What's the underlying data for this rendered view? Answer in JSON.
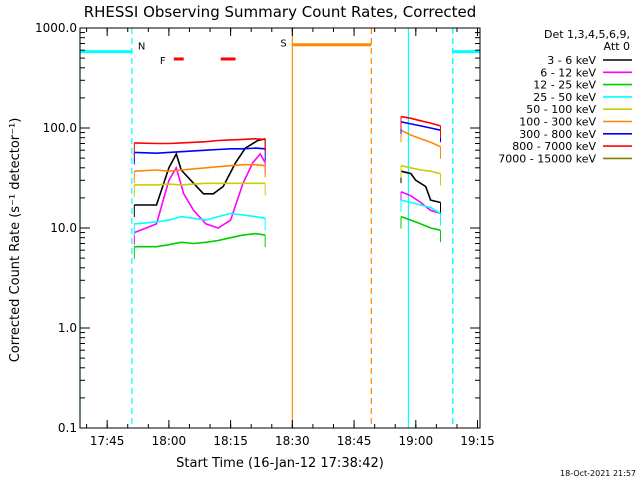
{
  "chart_data": {
    "type": "line",
    "title": "RHESSI Observing Summary Count Rates, Corrected",
    "xlabel": "Start Time (16-Jan-12 17:38:42)",
    "ylabel": "Corrected Count Rate (s⁻¹ detector⁻¹)",
    "yscale": "log",
    "ylim": [
      0.1,
      1000
    ],
    "xlim_minutes": [
      17.64,
      19.26
    ],
    "xticks": [
      "17:45",
      "18:00",
      "18:15",
      "18:30",
      "18:45",
      "19:00",
      "19:15"
    ],
    "xtick_minutes": [
      17.75,
      18.0,
      18.25,
      18.5,
      18.75,
      19.0,
      19.25
    ],
    "yticks": [
      "0.1",
      "1.0",
      "10.0",
      "100.0",
      "1000.0"
    ],
    "ytick_values": [
      0.1,
      1,
      10,
      100,
      1000
    ],
    "legend_title": [
      "Det 1,3,4,5,6,9,",
      "Att 0"
    ],
    "legend_position": "right",
    "timestamp": "18-Oct-2021 21:57",
    "series": [
      {
        "name": "3 - 6 keV",
        "color": "#000000",
        "segments": [
          [
            [
              17.86,
              17
            ],
            [
              17.95,
              17
            ],
            [
              18.0,
              40
            ],
            [
              18.03,
              55
            ],
            [
              18.05,
              38
            ],
            [
              18.1,
              28
            ],
            [
              18.14,
              22
            ],
            [
              18.18,
              22
            ],
            [
              18.22,
              26
            ],
            [
              18.27,
              45
            ],
            [
              18.31,
              63
            ],
            [
              18.36,
              75
            ],
            [
              18.39,
              78
            ]
          ],
          [
            [
              18.94,
              37
            ],
            [
              18.98,
              35
            ],
            [
              19.0,
              30
            ],
            [
              19.04,
              26
            ],
            [
              19.06,
              19
            ],
            [
              19.1,
              18
            ]
          ]
        ]
      },
      {
        "name": "6 - 12 keV",
        "color": "#ff00ff",
        "segments": [
          [
            [
              17.86,
              9
            ],
            [
              17.95,
              11
            ],
            [
              18.0,
              30
            ],
            [
              18.03,
              40
            ],
            [
              18.06,
              22
            ],
            [
              18.1,
              15
            ],
            [
              18.15,
              11
            ],
            [
              18.2,
              10
            ],
            [
              18.25,
              12
            ],
            [
              18.3,
              28
            ],
            [
              18.34,
              45
            ],
            [
              18.37,
              55
            ],
            [
              18.39,
              45
            ]
          ],
          [
            [
              18.94,
              23
            ],
            [
              18.98,
              21
            ],
            [
              19.02,
              18
            ],
            [
              19.06,
              15
            ],
            [
              19.1,
              14
            ]
          ]
        ]
      },
      {
        "name": "12 - 25 keV",
        "color": "#00cc00",
        "segments": [
          [
            [
              17.86,
              6.5
            ],
            [
              17.95,
              6.5
            ],
            [
              18.0,
              6.8
            ],
            [
              18.05,
              7.2
            ],
            [
              18.1,
              7
            ],
            [
              18.15,
              7.2
            ],
            [
              18.2,
              7.5
            ],
            [
              18.25,
              8
            ],
            [
              18.3,
              8.5
            ],
            [
              18.35,
              8.8
            ],
            [
              18.39,
              8.5
            ]
          ],
          [
            [
              18.94,
              13
            ],
            [
              18.98,
              12
            ],
            [
              19.02,
              11
            ],
            [
              19.06,
              10
            ],
            [
              19.1,
              9.5
            ]
          ]
        ]
      },
      {
        "name": "25 - 50 keV",
        "color": "#00ffff",
        "segments": [
          [
            [
              17.86,
              11
            ],
            [
              17.95,
              11.5
            ],
            [
              18.0,
              12
            ],
            [
              18.05,
              13
            ],
            [
              18.1,
              12.5
            ],
            [
              18.15,
              12
            ],
            [
              18.2,
              13
            ],
            [
              18.25,
              14
            ],
            [
              18.3,
              13.5
            ],
            [
              18.35,
              13
            ],
            [
              18.39,
              12.5
            ]
          ],
          [
            [
              18.94,
              19
            ],
            [
              18.98,
              18
            ],
            [
              19.02,
              17
            ],
            [
              19.06,
              16
            ],
            [
              19.1,
              14
            ]
          ]
        ]
      },
      {
        "name": "50 - 100 keV",
        "color": "#cccc00",
        "segments": [
          [
            [
              17.86,
              27
            ],
            [
              17.95,
              27
            ],
            [
              18.0,
              27.5
            ],
            [
              18.05,
              27
            ],
            [
              18.1,
              27.5
            ],
            [
              18.15,
              28
            ],
            [
              18.2,
              28
            ],
            [
              18.25,
              28
            ],
            [
              18.3,
              28
            ],
            [
              18.35,
              28
            ],
            [
              18.39,
              28
            ]
          ],
          [
            [
              18.94,
              42
            ],
            [
              18.98,
              40
            ],
            [
              19.02,
              38
            ],
            [
              19.06,
              37
            ],
            [
              19.1,
              35
            ]
          ]
        ]
      },
      {
        "name": "100 - 300 keV",
        "color": "#ff8800",
        "segments": [
          [
            [
              17.86,
              37
            ],
            [
              17.95,
              38
            ],
            [
              18.0,
              37
            ],
            [
              18.05,
              38
            ],
            [
              18.1,
              39
            ],
            [
              18.15,
              40
            ],
            [
              18.2,
              41
            ],
            [
              18.25,
              42
            ],
            [
              18.3,
              43
            ],
            [
              18.35,
              43
            ],
            [
              18.39,
              42
            ]
          ],
          [
            [
              18.94,
              95
            ],
            [
              18.98,
              85
            ],
            [
              19.02,
              78
            ],
            [
              19.06,
              72
            ],
            [
              19.1,
              65
            ]
          ]
        ]
      },
      {
        "name": "300 - 800 keV",
        "color": "#0000ff",
        "segments": [
          [
            [
              17.86,
              57
            ],
            [
              17.95,
              56
            ],
            [
              18.0,
              57
            ],
            [
              18.05,
              58
            ],
            [
              18.1,
              59
            ],
            [
              18.15,
              60
            ],
            [
              18.2,
              61
            ],
            [
              18.25,
              62
            ],
            [
              18.3,
              62
            ],
            [
              18.35,
              63
            ],
            [
              18.39,
              62
            ]
          ],
          [
            [
              18.94,
              115
            ],
            [
              18.98,
              110
            ],
            [
              19.02,
              105
            ],
            [
              19.06,
              100
            ],
            [
              19.1,
              95
            ]
          ]
        ]
      },
      {
        "name": "800 - 7000 keV",
        "color": "#ff0000",
        "segments": [
          [
            [
              17.86,
              71
            ],
            [
              17.95,
              70
            ],
            [
              18.0,
              70
            ],
            [
              18.05,
              71
            ],
            [
              18.1,
              72
            ],
            [
              18.15,
              73
            ],
            [
              18.2,
              75
            ],
            [
              18.25,
              76
            ],
            [
              18.3,
              77
            ],
            [
              18.35,
              78
            ],
            [
              18.39,
              77
            ]
          ],
          [
            [
              18.94,
              130
            ],
            [
              18.98,
              125
            ],
            [
              19.02,
              118
            ],
            [
              19.06,
              112
            ],
            [
              19.1,
              105
            ]
          ]
        ]
      },
      {
        "name": "7000 - 15000 keV",
        "color": "#808000",
        "segments": []
      }
    ],
    "flags": {
      "night_intervals": [
        [
          17.64,
          17.85
        ],
        [
          19.15,
          19.26
        ]
      ],
      "night_level": 580,
      "night_color": "#00ffff",
      "night_label": "N",
      "saa_interval": [
        18.5,
        18.82
      ],
      "saa_level": 680,
      "saa_color": "#ff8800",
      "saa_label": "S",
      "flare_intervals": [
        [
          18.02,
          18.06
        ],
        [
          18.21,
          18.27
        ]
      ],
      "flare_level": 490,
      "flare_color": "#ff0000",
      "flare_label": "F"
    },
    "vlines": [
      {
        "x": 17.64,
        "color": "#00ffff",
        "style": "solid"
      },
      {
        "x": 17.85,
        "color": "#00ffff",
        "style": "dashed"
      },
      {
        "x": 18.5,
        "color": "#ff8800",
        "style": "solid"
      },
      {
        "x": 18.82,
        "color": "#ff8800",
        "style": "dashed"
      },
      {
        "x": 19.15,
        "color": "#00ffff",
        "style": "dashed"
      },
      {
        "x": 18.97,
        "color": "#00ffff",
        "style": "solid"
      },
      {
        "x": 19.15,
        "color": "#00ffff",
        "style": "dashed"
      }
    ]
  }
}
